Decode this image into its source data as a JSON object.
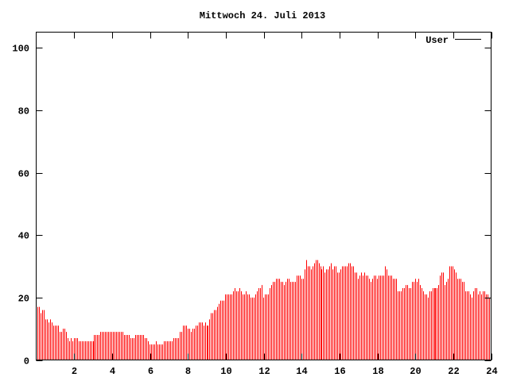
{
  "chart_data": {
    "type": "bar",
    "style": "impulses",
    "title": "Mittwoch 24. Juli 2013",
    "xlabel": "",
    "ylabel": "",
    "xlim": [
      0,
      24
    ],
    "ylim": [
      0,
      105
    ],
    "x_ticks": [
      "2",
      "4",
      "6",
      "8",
      "10",
      "12",
      "14",
      "16",
      "18",
      "20",
      "22",
      "24"
    ],
    "y_ticks": [
      "0",
      "20",
      "40",
      "60",
      "80",
      "100"
    ],
    "grid": false,
    "legend_position": "top-right",
    "bar_color": "#ff0000",
    "series": [
      {
        "name": "User",
        "x_step_hours": 0.0833,
        "values": [
          17,
          17,
          15,
          16,
          16,
          13,
          13,
          12,
          13,
          12,
          11,
          11,
          11,
          11,
          9,
          9,
          10,
          10,
          9,
          7,
          6,
          7,
          6,
          7,
          7,
          7,
          6,
          6,
          6,
          6,
          6,
          6,
          6,
          6,
          6,
          6,
          8,
          8,
          8,
          8,
          9,
          9,
          9,
          9,
          9,
          9,
          9,
          9,
          9,
          9,
          9,
          9,
          9,
          9,
          9,
          8,
          8,
          8,
          8,
          7,
          7,
          7,
          8,
          8,
          8,
          8,
          8,
          8,
          7,
          7,
          6,
          5,
          5,
          5,
          5,
          6,
          5,
          5,
          5,
          5,
          6,
          6,
          6,
          6,
          6,
          6,
          7,
          7,
          7,
          7,
          9,
          9,
          11,
          11,
          11,
          10,
          10,
          9,
          10,
          10,
          11,
          11,
          12,
          12,
          12,
          11,
          12,
          11,
          11,
          13,
          15,
          15,
          16,
          16,
          17,
          18,
          19,
          19,
          19,
          21,
          21,
          21,
          21,
          21,
          22,
          23,
          22,
          22,
          23,
          22,
          21,
          21,
          22,
          21,
          21,
          20,
          20,
          20,
          21,
          22,
          23,
          23,
          24,
          20,
          21,
          21,
          21,
          23,
          24,
          25,
          25,
          26,
          26,
          26,
          25,
          25,
          24,
          25,
          26,
          26,
          25,
          25,
          25,
          25,
          27,
          27,
          27,
          26,
          26,
          29,
          32,
          30,
          30,
          29,
          30,
          31,
          32,
          32,
          31,
          30,
          29,
          30,
          28,
          29,
          29,
          30,
          31,
          29,
          30,
          30,
          28,
          28,
          29,
          30,
          30,
          30,
          30,
          31,
          31,
          30,
          30,
          28,
          28,
          26,
          27,
          28,
          27,
          28,
          27,
          27,
          26,
          25,
          26,
          27,
          27,
          26,
          27,
          27,
          27,
          27,
          30,
          29,
          27,
          27,
          27,
          26,
          26,
          26,
          22,
          22,
          22,
          23,
          23,
          24,
          24,
          23,
          23,
          25,
          25,
          26,
          25,
          26,
          24,
          23,
          22,
          21,
          21,
          20,
          22,
          22,
          23,
          23,
          23,
          23,
          24,
          27,
          28,
          28,
          24,
          25,
          26,
          30,
          30,
          30,
          29,
          28,
          26,
          26,
          26,
          25,
          25,
          22,
          22,
          22,
          21,
          20,
          22,
          23,
          23,
          21,
          22,
          21,
          22,
          22,
          21,
          21,
          20,
          21
        ]
      }
    ]
  }
}
